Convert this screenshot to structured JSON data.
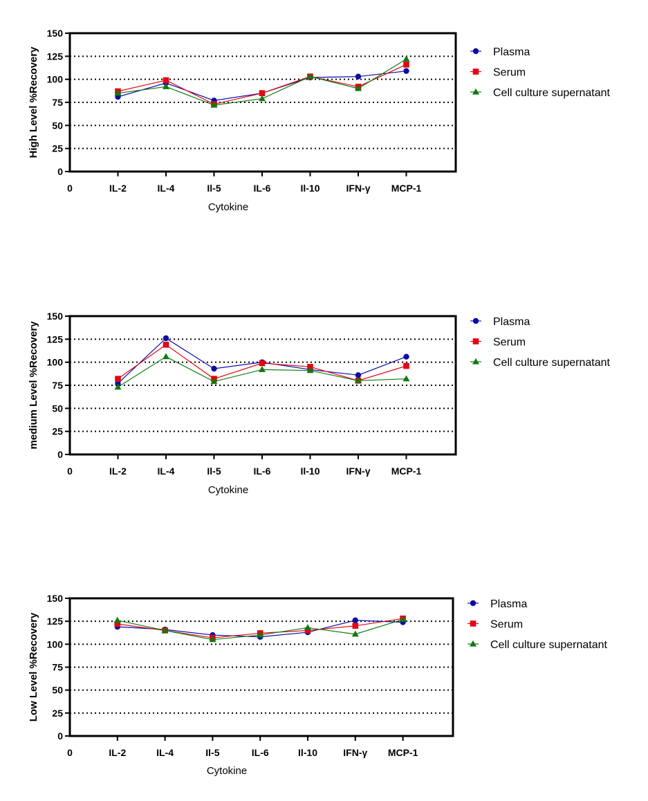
{
  "colors": {
    "Plasma": "#0b0ba6",
    "Serum": "#e30613",
    "Cell culture supernatant": "#0f7a0f"
  },
  "chart_data": [
    {
      "type": "line",
      "categories": [
        "IL-2",
        "IL-4",
        "Il-5",
        "IL-6",
        "Il-10",
        "IFN-γ",
        "MCP-1"
      ],
      "x_origin_label": "0",
      "xlabel": "Cytokine",
      "ylabel": "High Level %Recovery",
      "ylim": [
        0,
        150
      ],
      "yticks": [
        0,
        25,
        50,
        75,
        100,
        125,
        150
      ],
      "grid": "dotted horizontal at 25, 50, 75, 100, 125",
      "legend_position": "right",
      "series": [
        {
          "name": "Plasma",
          "marker": "circle",
          "values": [
            81,
            96,
            77,
            85,
            102,
            103,
            109
          ]
        },
        {
          "name": "Serum",
          "marker": "square",
          "values": [
            87,
            99,
            73,
            85,
            103,
            92,
            116
          ]
        },
        {
          "name": "Cell culture supernatant",
          "marker": "triangle",
          "values": [
            85,
            92,
            72,
            79,
            103,
            90,
            122
          ]
        }
      ]
    },
    {
      "type": "line",
      "categories": [
        "IL-2",
        "IL-4",
        "Il-5",
        "IL-6",
        "Il-10",
        "IFN-γ",
        "MCP-1"
      ],
      "x_origin_label": "0",
      "xlabel": "Cytokine",
      "ylabel": "medium Level %Recovery",
      "ylim": [
        0,
        150
      ],
      "yticks": [
        0,
        25,
        50,
        75,
        100,
        125,
        150
      ],
      "grid": "dotted horizontal at 25, 50, 75, 100, 125",
      "legend_position": "right",
      "series": [
        {
          "name": "Plasma",
          "marker": "circle",
          "values": [
            77,
            126,
            93,
            100,
            92,
            86,
            106
          ]
        },
        {
          "name": "Serum",
          "marker": "square",
          "values": [
            82,
            119,
            82,
            99,
            95,
            80,
            96
          ]
        },
        {
          "name": "Cell culture supernatant",
          "marker": "triangle",
          "values": [
            73,
            106,
            79,
            92,
            91,
            80,
            82
          ]
        }
      ]
    },
    {
      "type": "line",
      "categories": [
        "IL-2",
        "IL-4",
        "Il-5",
        "IL-6",
        "Il-10",
        "IFN-γ",
        "MCP-1"
      ],
      "x_origin_label": "0",
      "xlabel": "Cytokine",
      "ylabel": "Low Level %Recovery",
      "ylim": [
        0,
        150
      ],
      "yticks": [
        0,
        25,
        50,
        75,
        100,
        125,
        150
      ],
      "grid": "dotted horizontal at 25, 50, 75, 100, 125",
      "legend_position": "right",
      "series": [
        {
          "name": "Plasma",
          "marker": "circle",
          "values": [
            119,
            116,
            110,
            108,
            113,
            126,
            124
          ]
        },
        {
          "name": "Serum",
          "marker": "square",
          "values": [
            122,
            115,
            107,
            112,
            115,
            120,
            128
          ]
        },
        {
          "name": "Cell culture supernatant",
          "marker": "triangle",
          "values": [
            126,
            115,
            105,
            110,
            118,
            111,
            127
          ]
        }
      ]
    }
  ]
}
